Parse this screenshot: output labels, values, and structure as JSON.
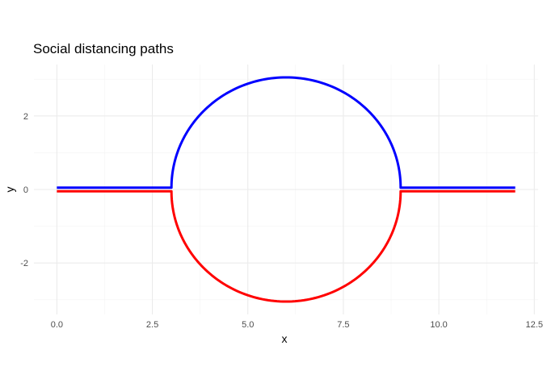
{
  "chart_data": {
    "type": "line",
    "title": "Social distancing paths",
    "xlabel": "x",
    "ylabel": "y",
    "xlim": [
      -0.6,
      12.6
    ],
    "ylim": [
      -3.4,
      3.4
    ],
    "x_ticks": [
      0,
      2.5,
      5,
      7.5,
      10,
      12.5
    ],
    "x_tick_labels": [
      "0.0",
      "2.5",
      "5.0",
      "7.5",
      "10.0",
      "12.5"
    ],
    "y_ticks": [
      -2,
      0,
      2
    ],
    "y_tick_labels": [
      "-2",
      "0",
      "2"
    ],
    "grid": true,
    "legend": "none",
    "series": [
      {
        "color": "#0000ff",
        "segments": [
          {
            "kind": "line",
            "x": [
              0,
              3
            ],
            "y": [
              0.05,
              0.05
            ]
          },
          {
            "kind": "semicircle",
            "center": [
              6,
              0.05
            ],
            "radius": 3,
            "side": "upper"
          },
          {
            "kind": "line",
            "x": [
              9,
              12
            ],
            "y": [
              0.05,
              0.05
            ]
          }
        ]
      },
      {
        "color": "#ff0000",
        "segments": [
          {
            "kind": "line",
            "x": [
              0,
              3
            ],
            "y": [
              -0.05,
              -0.05
            ]
          },
          {
            "kind": "semicircle",
            "center": [
              6,
              -0.05
            ],
            "radius": 3,
            "side": "lower"
          },
          {
            "kind": "line",
            "x": [
              9,
              12
            ],
            "y": [
              -0.05,
              -0.05
            ]
          }
        ]
      }
    ]
  }
}
